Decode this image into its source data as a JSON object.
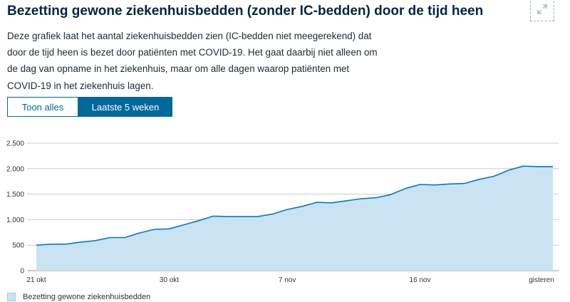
{
  "header": {
    "title": "Bezetting gewone ziekenhuisbedden (zonder IC-bedden) door de tijd heen",
    "description": "Deze grafiek laat het aantal ziekenhuisbedden zien (IC-bedden niet meegerekend) dat door de tijd heen is bezet door patiënten met COVID-19. Het gaat daarbij niet alleen om de dag van opname in het ziekenhuis, maar om alle dagen waarop patiënten met COVID-19 in het ziekenhuis lagen.",
    "expand_icon": "expand-icon"
  },
  "toggle": {
    "options": [
      {
        "label": "Toon alles",
        "active": false
      },
      {
        "label": "Laatste 5 weken",
        "active": true
      }
    ]
  },
  "colors": {
    "line": "#007bc7",
    "area": "#c9e3f2",
    "grid": "#cccccc",
    "primary": "#01689b"
  },
  "chart_data": {
    "type": "area",
    "x": [
      "21 okt",
      "22 okt",
      "23 okt",
      "24 okt",
      "25 okt",
      "26 okt",
      "27 okt",
      "28 okt",
      "29 okt",
      "30 okt",
      "31 okt",
      "1 nov",
      "2 nov",
      "3 nov",
      "4 nov",
      "5 nov",
      "6 nov",
      "7 nov",
      "8 nov",
      "9 nov",
      "10 nov",
      "11 nov",
      "12 nov",
      "13 nov",
      "14 nov",
      "15 nov",
      "16 nov",
      "17 nov",
      "18 nov",
      "19 nov",
      "20 nov",
      "21 nov",
      "22 nov",
      "23 nov",
      "24 nov",
      "gisteren"
    ],
    "series": [
      {
        "name": "Bezetting gewone ziekenhuisbedden",
        "values": [
          500,
          520,
          520,
          560,
          590,
          650,
          650,
          740,
          810,
          820,
          900,
          980,
          1070,
          1060,
          1060,
          1060,
          1110,
          1200,
          1260,
          1340,
          1330,
          1370,
          1410,
          1430,
          1490,
          1610,
          1690,
          1680,
          1700,
          1710,
          1790,
          1850,
          1970,
          2050,
          2040,
          2040
        ]
      }
    ],
    "xticks": [
      {
        "index": 0,
        "label": "21 okt"
      },
      {
        "index": 9,
        "label": "30 okt"
      },
      {
        "index": 17,
        "label": "7 nov"
      },
      {
        "index": 26,
        "label": "16 nov"
      },
      {
        "index": 35,
        "label": "gisteren"
      }
    ],
    "yticks": [
      {
        "value": 0,
        "label": "0"
      },
      {
        "value": 500,
        "label": "500"
      },
      {
        "value": 1000,
        "label": "1.000"
      },
      {
        "value": 1500,
        "label": "1.500"
      },
      {
        "value": 2000,
        "label": "2.000"
      },
      {
        "value": 2500,
        "label": "2.500"
      }
    ],
    "ylim": [
      0,
      2500
    ],
    "grid": true,
    "legend_position": "bottom-left"
  }
}
